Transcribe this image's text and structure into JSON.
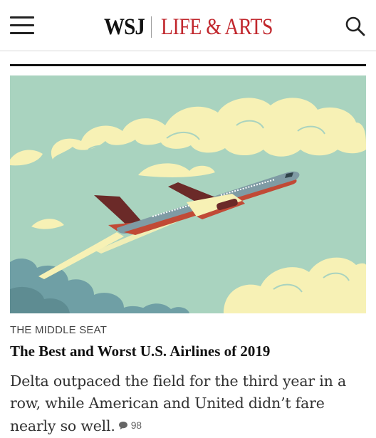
{
  "header": {
    "brand": "WSJ",
    "section": "LIFE & ARTS",
    "menu_icon": "hamburger-menu-icon",
    "search_icon": "search-icon",
    "section_color": "#c1272d"
  },
  "article": {
    "kicker": "THE MIDDLE SEAT",
    "headline": "The Best and Worst U.S. Airlines of 2019",
    "summary": "Delta outpaced the field for the third year in a row, while American and United didn’t fare nearly so well.",
    "comment_icon": "comment-bubble-icon",
    "comment_count": "98",
    "image": "illustration of a jet airliner climbing through pale yellow clouds over a mint-green sky"
  },
  "colors": {
    "sky": "#a9d3bf",
    "clouds": "#f7f1b5",
    "cloud_shadow": "#6f9fa5",
    "plane_body": "#7f9ba4",
    "plane_tail": "#6b2a28",
    "accent_red": "#c1272d"
  }
}
